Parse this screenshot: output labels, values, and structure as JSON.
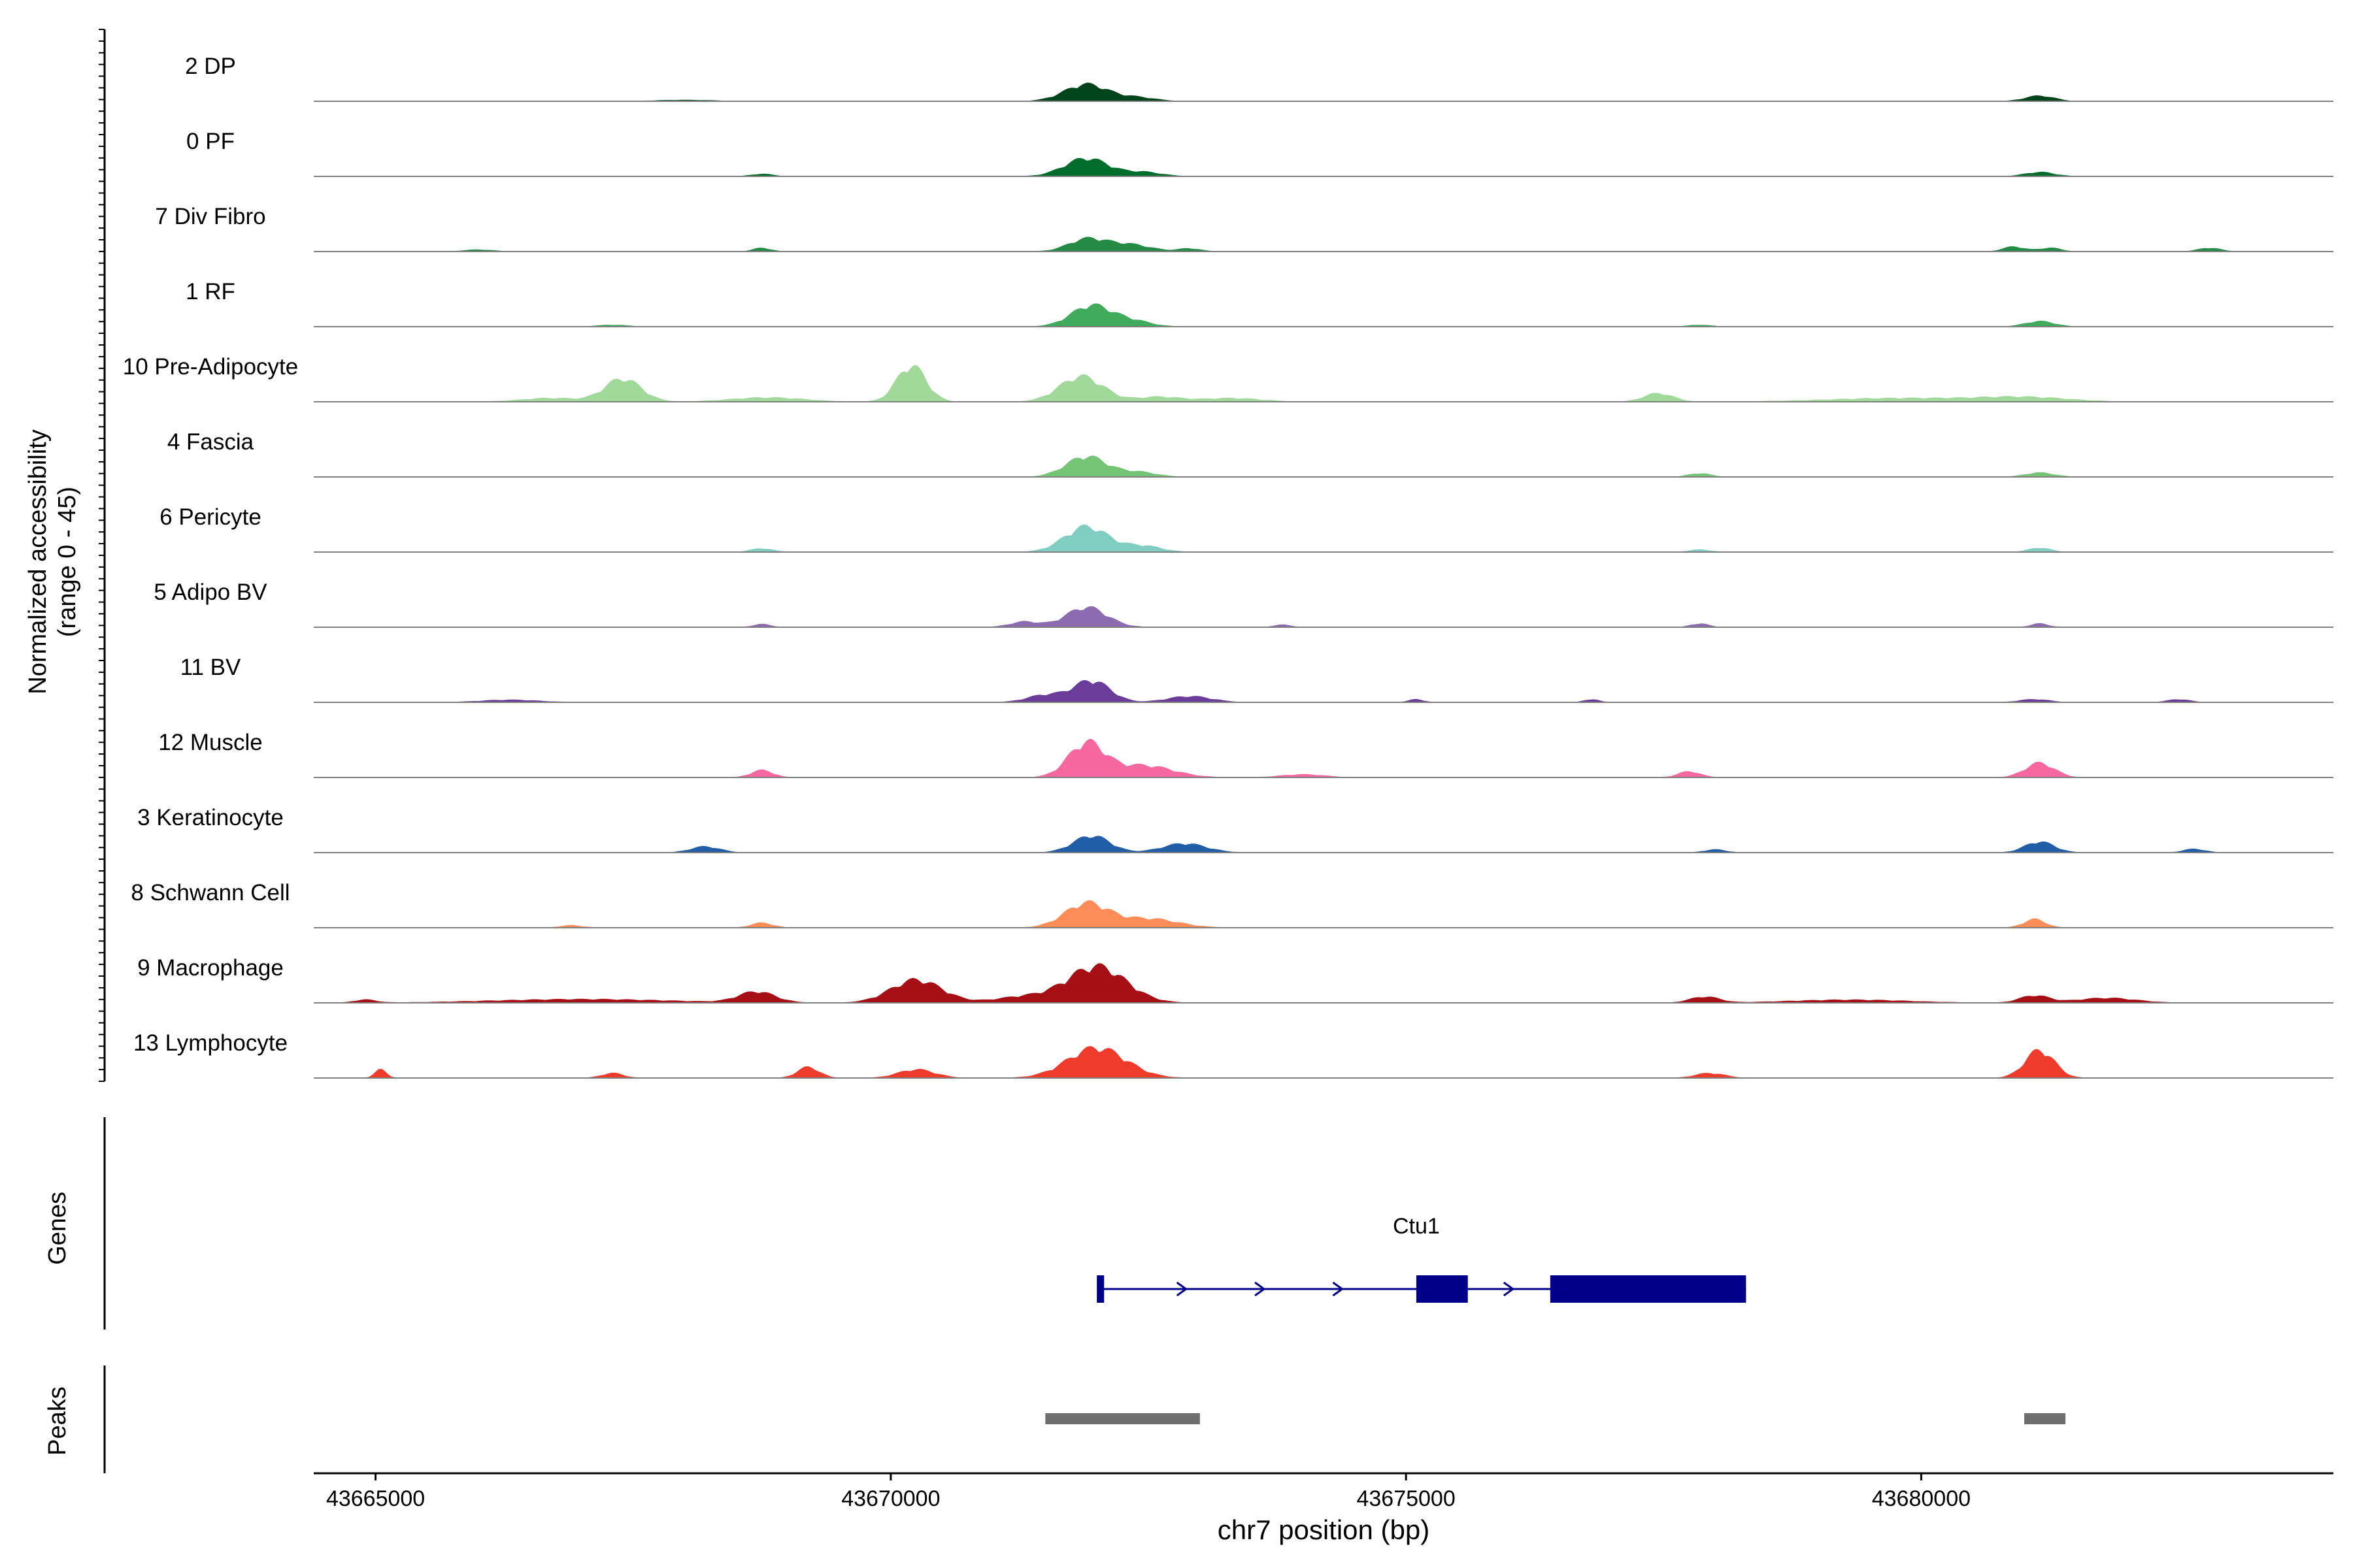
{
  "chart_data": {
    "type": "area",
    "title": "",
    "region": "chr7:43664400-43684000",
    "xlabel": "chr7 position (bp)",
    "ylabel_line1": "Normalized accessibility",
    "ylabel_line2": "(range 0 - 45)",
    "xlim": [
      43664400,
      43684000
    ],
    "ylim": [
      0,
      45
    ],
    "x_ticks": [
      43665000,
      43670000,
      43675000,
      43680000
    ],
    "x_tick_labels": [
      "43665000",
      "43670000",
      "43675000",
      "43680000"
    ],
    "tracks": [
      {
        "name": "2 DP",
        "color": "#00441b",
        "peaks": [
          [
            43671900,
            28,
            300
          ],
          [
            43672400,
            6,
            250
          ],
          [
            43681150,
            9,
            200
          ],
          [
            43668000,
            2,
            400
          ]
        ]
      },
      {
        "name": "0 PF",
        "color": "#006d2c",
        "peaks": [
          [
            43671900,
            30,
            300
          ],
          [
            43672450,
            7,
            250
          ],
          [
            43668750,
            4,
            150
          ],
          [
            43681150,
            7,
            200
          ]
        ]
      },
      {
        "name": "7 Div Fibro",
        "color": "#238b45",
        "peaks": [
          [
            43671900,
            20,
            250
          ],
          [
            43672300,
            12,
            300
          ],
          [
            43672900,
            5,
            150
          ],
          [
            43668750,
            6,
            120
          ],
          [
            43680900,
            8,
            150
          ],
          [
            43681250,
            6,
            150
          ],
          [
            43682800,
            6,
            150
          ],
          [
            43666000,
            3,
            200
          ]
        ]
      },
      {
        "name": "1 RF",
        "color": "#41ab5d",
        "peaks": [
          [
            43671950,
            35,
            280
          ],
          [
            43672350,
            9,
            250
          ],
          [
            43681150,
            9,
            200
          ],
          [
            43667300,
            3,
            200
          ],
          [
            43677850,
            3,
            150
          ]
        ]
      },
      {
        "name": "10 Pre-Adipocyte",
        "color": "#a1d99b",
        "peaks": [
          [
            43667400,
            38,
            250
          ],
          [
            43670200,
            60,
            200
          ],
          [
            43671850,
            42,
            300
          ],
          [
            43672600,
            8,
            300
          ],
          [
            43677450,
            14,
            200
          ],
          [
            43666700,
            6,
            400
          ],
          [
            43668800,
            7,
            500
          ],
          [
            43673300,
            6,
            400
          ],
          [
            43679800,
            6,
            1000
          ],
          [
            43681000,
            7,
            600
          ]
        ]
      },
      {
        "name": "4 Fascia",
        "color": "#74c476",
        "peaks": [
          [
            43671900,
            34,
            280
          ],
          [
            43672400,
            8,
            250
          ],
          [
            43677850,
            6,
            150
          ],
          [
            43681150,
            7,
            200
          ]
        ]
      },
      {
        "name": "6 Pericyte",
        "color": "#80cdc1",
        "peaks": [
          [
            43671900,
            42,
            300
          ],
          [
            43672450,
            10,
            250
          ],
          [
            43668750,
            6,
            150
          ],
          [
            43681150,
            7,
            150
          ],
          [
            43677850,
            4,
            150
          ]
        ]
      },
      {
        "name": "5 Adipo BV",
        "color": "#8c6bb1",
        "peaks": [
          [
            43671900,
            33,
            280
          ],
          [
            43671300,
            9,
            200
          ],
          [
            43668750,
            5,
            120
          ],
          [
            43677850,
            6,
            120
          ],
          [
            43681150,
            6,
            120
          ],
          [
            43673800,
            4,
            120
          ]
        ]
      },
      {
        "name": "11 BV",
        "color": "#6a3d9a",
        "peaks": [
          [
            43671950,
            36,
            250
          ],
          [
            43671500,
            12,
            250
          ],
          [
            43672900,
            10,
            300
          ],
          [
            43666300,
            4,
            400
          ],
          [
            43675100,
            5,
            100
          ],
          [
            43676800,
            5,
            100
          ],
          [
            43681100,
            5,
            200
          ],
          [
            43682500,
            5,
            150
          ]
        ]
      },
      {
        "name": "12 Muscle",
        "color": "#f768a1",
        "peaks": [
          [
            43671900,
            56,
            250
          ],
          [
            43672450,
            20,
            400
          ],
          [
            43668750,
            12,
            150
          ],
          [
            43677750,
            10,
            150
          ],
          [
            43681150,
            24,
            200
          ],
          [
            43674000,
            5,
            300
          ]
        ]
      },
      {
        "name": "3 Keratinocyte",
        "color": "#225ea8",
        "peaks": [
          [
            43671950,
            28,
            250
          ],
          [
            43672850,
            15,
            300
          ],
          [
            43668200,
            10,
            200
          ],
          [
            43681150,
            18,
            200
          ],
          [
            43682650,
            6,
            150
          ],
          [
            43678000,
            5,
            150
          ]
        ]
      },
      {
        "name": "8 Schwann Cell",
        "color": "#fc8d59",
        "peaks": [
          [
            43671900,
            40,
            300
          ],
          [
            43672500,
            15,
            400
          ],
          [
            43668750,
            8,
            150
          ],
          [
            43681100,
            14,
            150
          ],
          [
            43666900,
            4,
            150
          ]
        ]
      },
      {
        "name": "9 Macrophage",
        "color": "#a50f15",
        "peaks": [
          [
            43672000,
            60,
            400
          ],
          [
            43670250,
            38,
            350
          ],
          [
            43668700,
            18,
            250
          ],
          [
            43671300,
            10,
            400
          ],
          [
            43677900,
            10,
            200
          ],
          [
            43681100,
            12,
            200
          ],
          [
            43681800,
            8,
            400
          ],
          [
            43667000,
            6,
            1200
          ],
          [
            43679300,
            5,
            800
          ],
          [
            43664900,
            5,
            150
          ]
        ]
      },
      {
        "name": "13 Lymphocyte",
        "color": "#ef3b2c",
        "peaks": [
          [
            43672000,
            50,
            400
          ],
          [
            43681150,
            46,
            200
          ],
          [
            43669200,
            18,
            150
          ],
          [
            43670250,
            14,
            250
          ],
          [
            43665050,
            14,
            80
          ],
          [
            43667300,
            8,
            150
          ],
          [
            43677950,
            8,
            200
          ]
        ]
      }
    ],
    "genes_label": "Genes",
    "gene": {
      "name": "Ctu1",
      "start": 43672000,
      "end": 43678300,
      "exons": [
        [
          43672000,
          43672070
        ],
        [
          43675100,
          43675600
        ],
        [
          43676400,
          43678300
        ]
      ],
      "color": "#00008b"
    },
    "peaks_label": "Peaks",
    "peak_regions": [
      [
        43671500,
        43673000
      ],
      [
        43681000,
        43681400
      ]
    ],
    "peak_color": "#6e6e6e"
  }
}
